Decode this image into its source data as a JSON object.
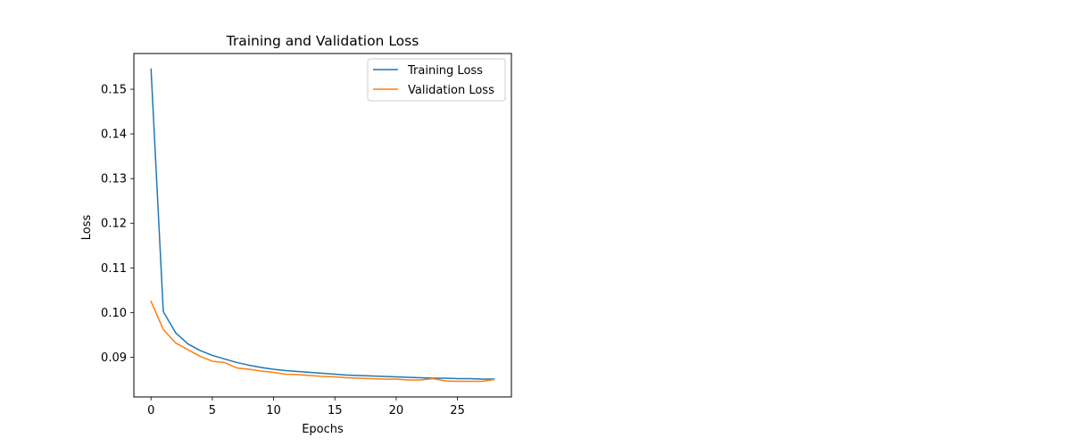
{
  "chart_data": {
    "type": "line",
    "title": "Training and Validation Loss",
    "xlabel": "Epochs",
    "ylabel": "Loss",
    "xlim": [
      -1.4,
      29.4
    ],
    "ylim": [
      0.0811,
      0.158
    ],
    "xticks": [
      0,
      5,
      10,
      15,
      20,
      25
    ],
    "yticks": [
      0.09,
      0.1,
      0.11,
      0.12,
      0.13,
      0.14,
      0.15
    ],
    "ytick_labels": [
      "0.09",
      "0.10",
      "0.11",
      "0.12",
      "0.13",
      "0.14",
      "0.15"
    ],
    "grid": false,
    "legend_position": "top-right",
    "x": [
      0,
      1,
      2,
      3,
      4,
      5,
      6,
      7,
      8,
      9,
      10,
      11,
      12,
      13,
      14,
      15,
      16,
      17,
      18,
      19,
      20,
      21,
      22,
      23,
      24,
      25,
      26,
      27,
      28
    ],
    "series": [
      {
        "name": "Training Loss",
        "color": "#1f77b4",
        "values": [
          0.1545,
          0.1002,
          0.0955,
          0.093,
          0.0915,
          0.0904,
          0.0896,
          0.0888,
          0.0882,
          0.0877,
          0.0873,
          0.087,
          0.0868,
          0.0866,
          0.0864,
          0.0862,
          0.086,
          0.0859,
          0.0858,
          0.0857,
          0.0856,
          0.0855,
          0.0854,
          0.0853,
          0.0853,
          0.0852,
          0.0852,
          0.0851,
          0.0851
        ]
      },
      {
        "name": "Validation Loss",
        "color": "#ff7f0e",
        "values": [
          0.1025,
          0.0962,
          0.0932,
          0.0917,
          0.0902,
          0.0891,
          0.0888,
          0.0876,
          0.0873,
          0.0869,
          0.0866,
          0.0862,
          0.0861,
          0.0859,
          0.0857,
          0.0856,
          0.0854,
          0.0853,
          0.0852,
          0.0851,
          0.0851,
          0.0849,
          0.0849,
          0.0852,
          0.0847,
          0.0846,
          0.0846,
          0.0846,
          0.085
        ]
      }
    ]
  }
}
